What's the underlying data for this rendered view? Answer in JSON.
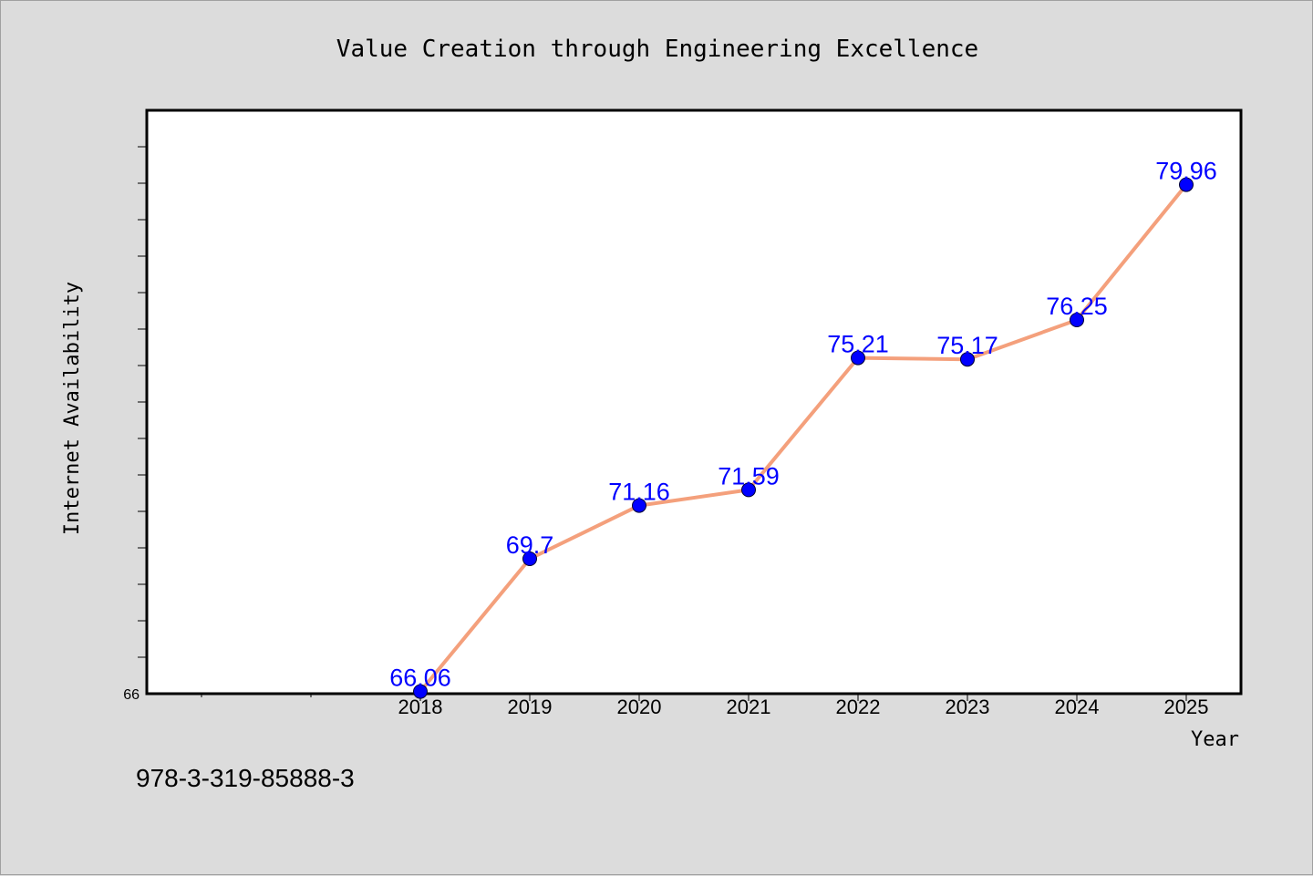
{
  "chart_data": {
    "type": "line",
    "title": "Value Creation through Engineering Excellence",
    "xlabel": "Year",
    "ylabel": "Internet Availability",
    "categories": [
      "2018",
      "2019",
      "2020",
      "2021",
      "2022",
      "2023",
      "2024",
      "2025"
    ],
    "series": [
      {
        "values": [
          66.06,
          69.7,
          71.16,
          71.59,
          75.21,
          75.17,
          76.25,
          79.96
        ],
        "data_labels": [
          "66.06",
          "69.7",
          "71.16",
          "71.59",
          "75.21",
          "75.17",
          "76.25",
          "79.96"
        ]
      }
    ],
    "ylim": [
      66,
      82
    ],
    "y_tick_labels": [
      "66"
    ],
    "grid": false,
    "legend": "none",
    "line_color": "#f4a07c",
    "marker_color": "#0000ff"
  },
  "footer": {
    "isbn": "978-3-319-85888-3"
  }
}
